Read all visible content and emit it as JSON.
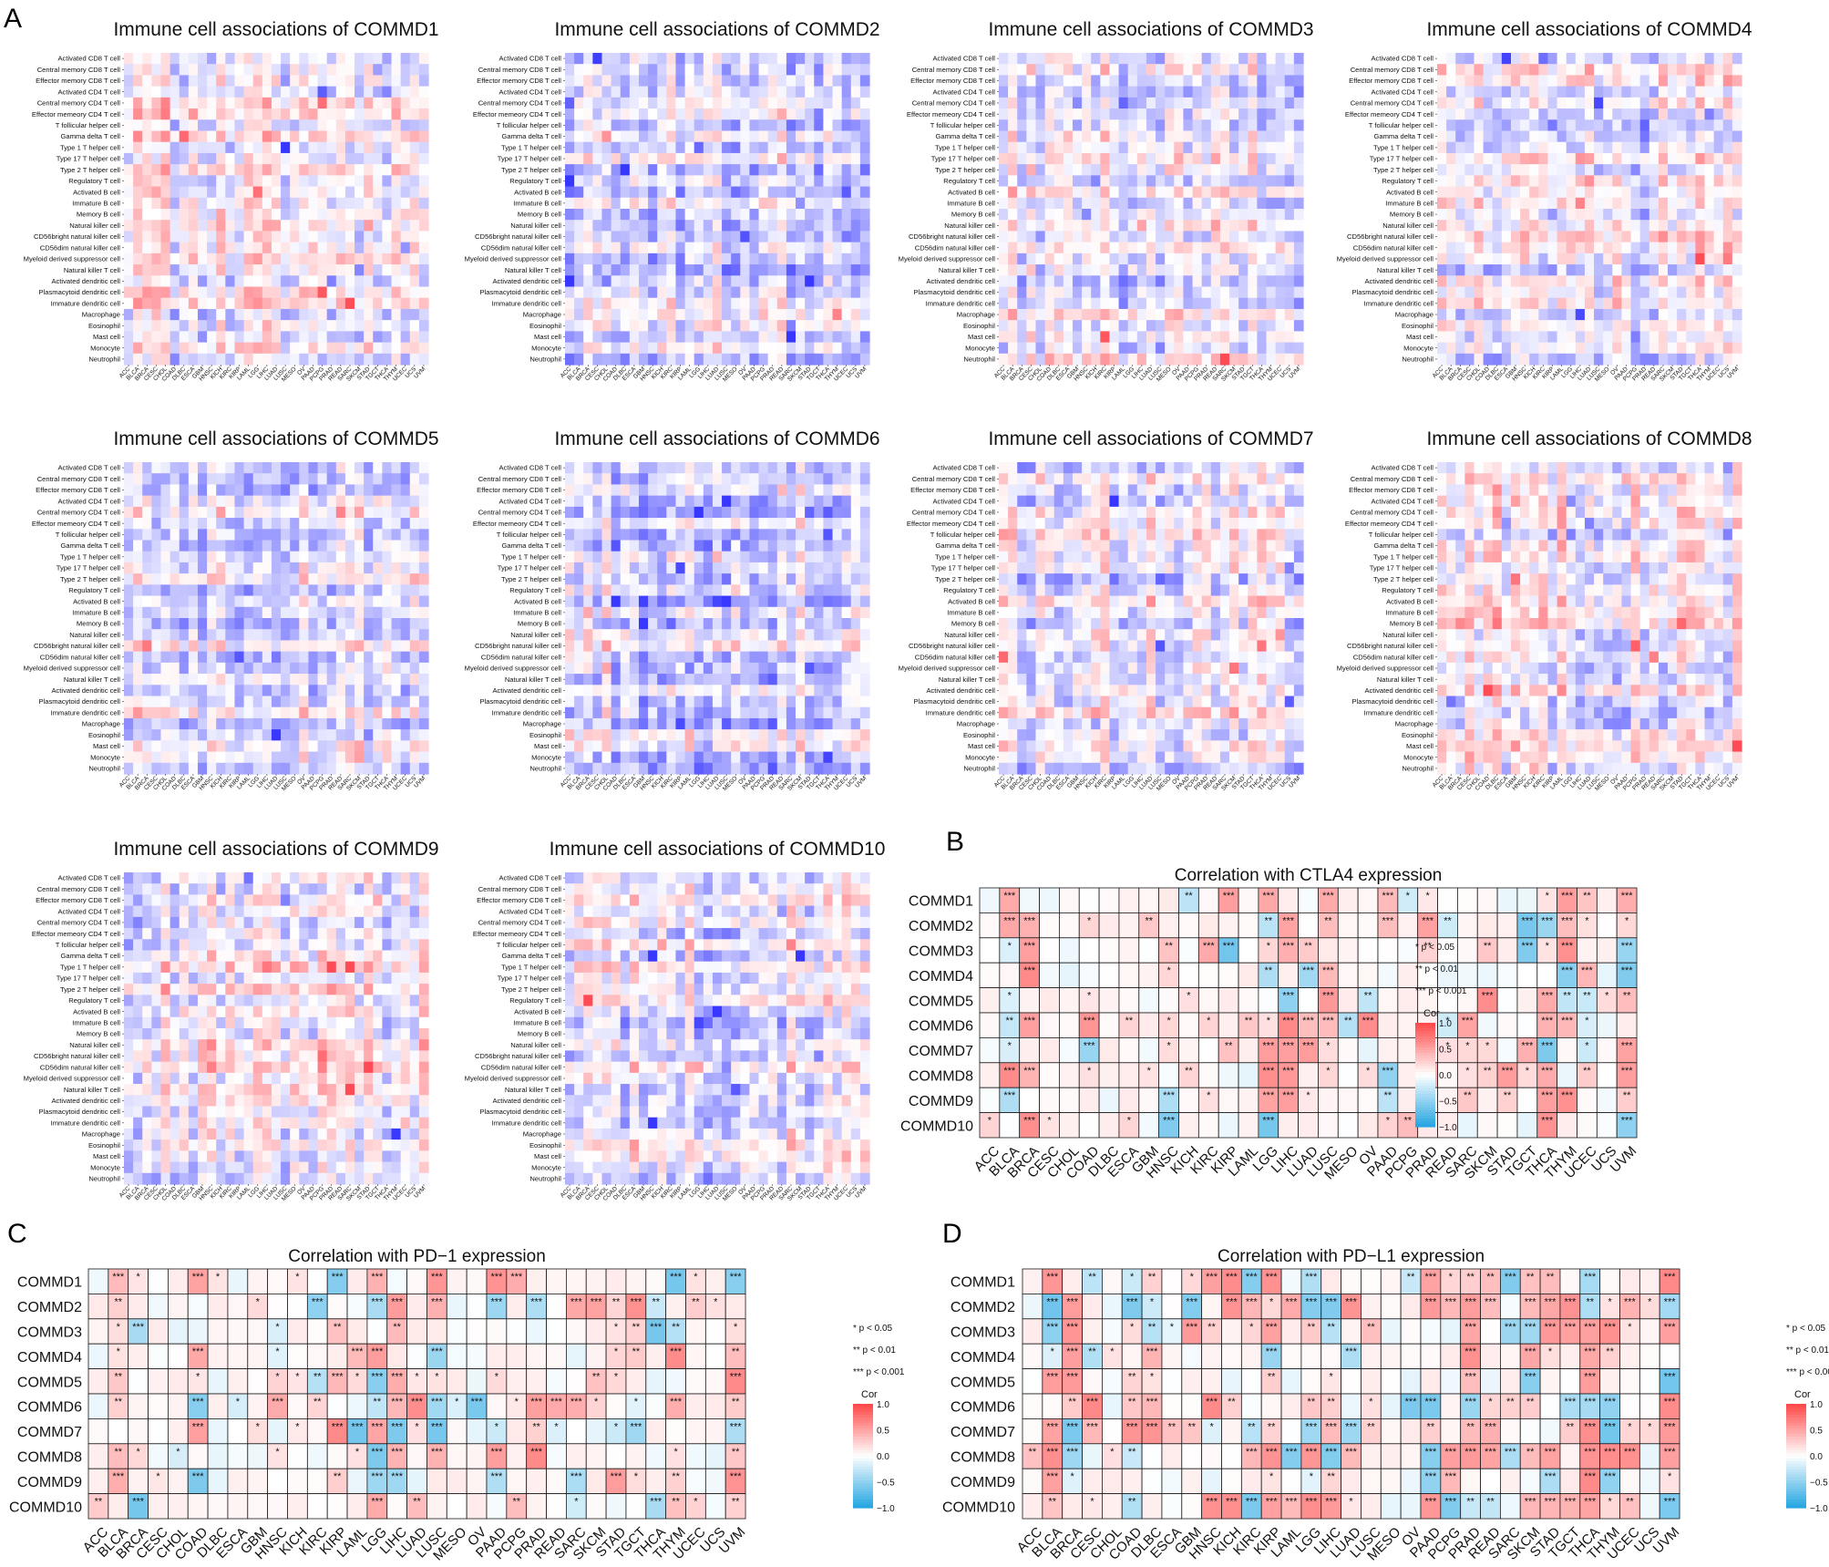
{
  "panel_letters": [
    "A",
    "B",
    "C",
    "D"
  ],
  "immune_cells": [
    "Activated CD8 T cell",
    "Central memory CD8 T cell",
    "Effector memory CD8 T cell",
    "Activated CD4 T cell",
    "Central memory CD4 T cell",
    "Effector memeory CD4 T cell",
    "T follicular helper cell",
    "Gamma delta T cell",
    "Type 1 T helper cell",
    "Type 17 T helper cell",
    "Type 2 T helper cell",
    "Regulatory T cell",
    "Activated B cell",
    "Immature  B cell",
    "Memory B cell",
    "Natural killer cell",
    "CD56bright natural killer cell",
    "CD56dim natural killer cell",
    "Myeloid derived suppressor cell",
    "Natural killer T cell",
    "Activated dendritic cell",
    "Plasmacytoid dendritic cell",
    "Immature dendritic cell",
    "Macrophage",
    "Eosinophil",
    "Mast cell",
    "Monocyte",
    "Neutrophil"
  ],
  "cancers": [
    "ACC",
    "BLCA",
    "BRCA",
    "CESC",
    "CHOL",
    "COAD",
    "DLBC",
    "ESCA",
    "GBM",
    "HNSC",
    "KICH",
    "KIRC",
    "KIRP",
    "LAML",
    "LGG",
    "LIHC",
    "LUAD",
    "LUSC",
    "MESO",
    "OV",
    "PAAD",
    "PCPG",
    "PRAD",
    "READ",
    "SARC",
    "SKCM",
    "STAD",
    "TGCT",
    "THCA",
    "THYM",
    "UCEC",
    "UCS",
    "UVM"
  ],
  "genes": [
    "COMMD1",
    "COMMD2",
    "COMMD3",
    "COMMD4",
    "COMMD5",
    "COMMD6",
    "COMMD7",
    "COMMD8",
    "COMMD9",
    "COMMD10"
  ],
  "legend": {
    "sig": [
      "* p < 0.05",
      "** p < 0.01",
      "*** p < 0.001"
    ],
    "title": "Cor",
    "ticks": [
      "1.0",
      "0.5",
      "0.0",
      "−0.5",
      "−1.0"
    ]
  },
  "colors": {
    "positive": "#e8464f",
    "negative": "#3b3bf0",
    "legend_positive": "#e24a4a",
    "legend_negative": "#29a8df"
  },
  "chart_data": [
    {
      "type": "heatmap",
      "title": "Immune cell associations of COMMD1",
      "x": "cancers",
      "y": "immune_cells",
      "bias": 0.08,
      "seed": 11
    },
    {
      "type": "heatmap",
      "title": "Immune cell associations of COMMD2",
      "x": "cancers",
      "y": "immune_cells",
      "bias": -0.12,
      "seed": 23
    },
    {
      "type": "heatmap",
      "title": "Immune cell associations of COMMD3",
      "x": "cancers",
      "y": "immune_cells",
      "bias": -0.02,
      "seed": 37
    },
    {
      "type": "heatmap",
      "title": "Immune cell associations of COMMD4",
      "x": "cancers",
      "y": "immune_cells",
      "bias": -0.08,
      "seed": 41
    },
    {
      "type": "heatmap",
      "title": "Immune cell associations of COMMD5",
      "x": "cancers",
      "y": "immune_cells",
      "bias": -0.04,
      "seed": 53
    },
    {
      "type": "heatmap",
      "title": "Immune cell associations of COMMD6",
      "x": "cancers",
      "y": "immune_cells",
      "bias": -0.1,
      "seed": 67
    },
    {
      "type": "heatmap",
      "title": "Immune cell associations of COMMD7",
      "x": "cancers",
      "y": "immune_cells",
      "bias": -0.06,
      "seed": 71
    },
    {
      "type": "heatmap",
      "title": "Immune cell associations of COMMD8",
      "x": "cancers",
      "y": "immune_cells",
      "bias": 0.04,
      "seed": 83
    },
    {
      "type": "heatmap",
      "title": "Immune cell associations of COMMD9",
      "x": "cancers",
      "y": "immune_cells",
      "bias": 0.1,
      "seed": 97
    },
    {
      "type": "heatmap",
      "title": "Immune cell associations of COMMD10",
      "x": "cancers",
      "y": "immune_cells",
      "bias": -0.02,
      "seed": 101
    },
    {
      "type": "heatmap",
      "title": "Correlation with CTLA4 expression",
      "x": "cancers",
      "y": "genes",
      "color_range": [
        -1,
        1
      ],
      "stars": [
        [
          "",
          "***",
          "",
          "",
          "",
          "",
          "",
          "",
          "",
          "",
          "**",
          "",
          "***",
          "",
          "***",
          "",
          "",
          "***",
          "",
          "",
          "***",
          "*",
          "*",
          "",
          "",
          "",
          "",
          "",
          "*",
          "***",
          "**",
          "",
          "***"
        ],
        [
          "",
          "***",
          "***",
          "",
          "",
          "*",
          "",
          "",
          "**",
          "",
          "",
          "",
          "",
          "",
          "**",
          "***",
          "",
          "**",
          "",
          "",
          "***",
          "",
          "***",
          "**",
          "",
          "",
          "",
          "***",
          "***",
          "***",
          "*",
          "",
          "*"
        ],
        [
          "",
          "*",
          "***",
          "",
          "",
          "",
          "",
          "",
          "",
          "**",
          "",
          "***",
          "***",
          "",
          "*",
          "***",
          "**",
          "",
          "",
          "",
          "",
          "",
          "**",
          "",
          "",
          "**",
          "",
          "***",
          "*",
          "***",
          "",
          "",
          "***"
        ],
        [
          "",
          "",
          "***",
          "",
          "",
          "",
          "",
          "",
          "",
          "*",
          "",
          "",
          "",
          "",
          "**",
          "",
          "***",
          "***",
          "",
          "",
          "",
          "",
          "",
          "",
          "",
          "",
          "",
          "",
          "",
          "***",
          "***",
          "",
          "***"
        ],
        [
          "",
          "*",
          "",
          "",
          "",
          "*",
          "",
          "",
          "",
          "",
          "*",
          "",
          "",
          "",
          "",
          "***",
          "",
          "***",
          "",
          "**",
          "",
          "",
          "",
          "",
          "",
          "***",
          "",
          "",
          "***",
          "**",
          "**",
          "*",
          "**"
        ],
        [
          "",
          "**",
          "***",
          "",
          "",
          "***",
          "",
          "**",
          "",
          "*",
          "",
          "*",
          "",
          "**",
          "*",
          "***",
          "***",
          "***",
          "**",
          "***",
          "",
          "",
          "",
          "*",
          "***",
          "",
          "",
          "",
          "***",
          "***",
          "*",
          "",
          ""
        ],
        [
          "",
          "*",
          "",
          "",
          "",
          "***",
          "",
          "",
          "",
          "*",
          "",
          "",
          "**",
          "",
          "***",
          "***",
          "***",
          "*",
          "",
          "",
          "",
          "",
          "",
          "*",
          "*",
          "*",
          "",
          "***",
          "***",
          "",
          "*",
          "",
          "***"
        ],
        [
          "",
          "***",
          "***",
          "",
          "",
          "*",
          "",
          "",
          "*",
          "",
          "**",
          "",
          "",
          "",
          "***",
          "***",
          "",
          "*",
          "",
          "*",
          "***",
          "",
          "***",
          "",
          "*",
          "**",
          "***",
          "*",
          "***",
          "",
          "**",
          "",
          "***"
        ],
        [
          "",
          "***",
          "",
          "",
          "",
          "",
          "",
          "",
          "",
          "***",
          "",
          "*",
          "",
          "",
          "***",
          "***",
          "*",
          "",
          "",
          "",
          "**",
          "",
          "",
          "",
          "**",
          "",
          "**",
          "",
          "***",
          "***",
          "",
          "",
          "**"
        ],
        [
          "*",
          "",
          "***",
          "*",
          "",
          "",
          "",
          "*",
          "",
          "***",
          "",
          "",
          "",
          "",
          "***",
          "",
          "",
          "",
          "",
          "",
          "*",
          "**",
          "",
          "",
          "",
          "",
          "",
          "",
          "***",
          "",
          "",
          "",
          "***"
        ]
      ]
    },
    {
      "type": "heatmap",
      "title": "Correlation with PD−1 expression",
      "x": "cancers",
      "y": "genes",
      "color_range": [
        -1,
        1
      ],
      "stars": [
        [
          "",
          "***",
          "*",
          "",
          "",
          "***",
          "*",
          "",
          "",
          "",
          "*",
          "",
          "***",
          "",
          "***",
          "",
          "",
          "***",
          "",
          "",
          "***",
          "***",
          "",
          "",
          "",
          "",
          "",
          "",
          "",
          "***",
          "*",
          "",
          "***"
        ],
        [
          "",
          "**",
          "",
          "",
          "",
          "",
          "",
          "",
          "*",
          "",
          "",
          "***",
          "",
          "",
          "***",
          "***",
          "",
          "***",
          "",
          "",
          "***",
          "",
          "***",
          "",
          "***",
          "***",
          "**",
          "***",
          "**",
          "",
          "**",
          "*",
          ""
        ],
        [
          "",
          "*",
          "***",
          "",
          "",
          "",
          "",
          "",
          "",
          "*",
          "",
          "",
          "**",
          "",
          "",
          "**",
          "",
          "",
          "",
          "",
          "",
          "",
          "",
          "",
          "",
          "",
          "*",
          "**",
          "***",
          "**",
          "",
          "",
          "*"
        ],
        [
          "",
          "*",
          "",
          "",
          "",
          "***",
          "",
          "",
          "",
          "*",
          "",
          "",
          "",
          "***",
          "***",
          "",
          "",
          "***",
          "",
          "",
          "",
          "",
          "",
          "",
          "",
          "",
          "*",
          "**",
          "",
          "***",
          "",
          "",
          "**"
        ],
        [
          "",
          "**",
          "",
          "",
          "",
          "*",
          "",
          "",
          "",
          "*",
          "*",
          "**",
          "***",
          "*",
          "***",
          "***",
          "*",
          "*",
          "",
          "",
          "*",
          "",
          "",
          "",
          "",
          "**",
          "*",
          "",
          "",
          "",
          "",
          "",
          "***"
        ],
        [
          "",
          "**",
          "",
          "",
          "",
          "***",
          "",
          "*",
          "",
          "***",
          "",
          "**",
          "",
          "",
          "**",
          "***",
          "***",
          "***",
          "*",
          "***",
          "",
          "*",
          "***",
          "***",
          "***",
          "*",
          "",
          "*",
          "",
          "***",
          "",
          "",
          "**"
        ],
        [
          "",
          "",
          "",
          "",
          "",
          "***",
          "",
          "",
          "*",
          "",
          "*",
          "",
          "***",
          "***",
          "***",
          "***",
          "*",
          "***",
          "",
          "",
          "*",
          "",
          "**",
          "*",
          "",
          "",
          "*",
          "***",
          "",
          "",
          "",
          "",
          "***"
        ],
        [
          "",
          "**",
          "*",
          "",
          "*",
          "",
          "",
          "",
          "",
          "*",
          "",
          "",
          "",
          "*",
          "***",
          "***",
          "",
          "***",
          "",
          "",
          "***",
          "",
          "***",
          "",
          "",
          "",
          "",
          "",
          "",
          "*",
          "",
          "",
          "**"
        ],
        [
          "",
          "***",
          "",
          "*",
          "",
          "***",
          "",
          "",
          "",
          "",
          "",
          "",
          "**",
          "",
          "***",
          "***",
          "",
          "",
          "",
          "",
          "***",
          "",
          "",
          "",
          "***",
          "",
          "***",
          "*",
          "",
          "**",
          "",
          "",
          "***"
        ],
        [
          "**",
          "",
          "***",
          "",
          "",
          "",
          "",
          "",
          "",
          "",
          "",
          "",
          "",
          "",
          "***",
          "",
          "**",
          "",
          "",
          "",
          "",
          "**",
          "",
          "",
          "*",
          "",
          "",
          "",
          "***",
          "**",
          "*",
          "",
          "**"
        ]
      ]
    },
    {
      "type": "heatmap",
      "title": "Correlation with PD−L1 expression",
      "x": "cancers",
      "y": "genes",
      "color_range": [
        -1,
        1
      ],
      "stars": [
        [
          "",
          "***",
          "",
          "**",
          "",
          "*",
          "**",
          "",
          "*",
          "***",
          "***",
          "***",
          "***",
          "",
          "***",
          "",
          "",
          "",
          "",
          "**",
          "***",
          "*",
          "**",
          "**",
          "***",
          "**",
          "**",
          "",
          "***",
          "",
          "",
          "",
          "***"
        ],
        [
          "",
          "***",
          "***",
          "",
          "",
          "***",
          "*",
          "",
          "***",
          "",
          "***",
          "***",
          "*",
          "***",
          "***",
          "***",
          "***",
          "",
          "",
          "",
          "***",
          "***",
          "***",
          "***",
          "",
          "***",
          "***",
          "***",
          "**",
          "*",
          "***",
          "*",
          "***"
        ],
        [
          "",
          "***",
          "***",
          "",
          "",
          "*",
          "**",
          "*",
          "***",
          "**",
          "",
          "*",
          "***",
          "",
          "**",
          "**",
          "",
          "**",
          "",
          "",
          "",
          "",
          "***",
          "",
          "***",
          "***",
          "***",
          "***",
          "***",
          "***",
          "*",
          "",
          "***"
        ],
        [
          "",
          "*",
          "***",
          "**",
          "*",
          "",
          "***",
          "",
          "",
          "",
          "",
          "",
          "***",
          "",
          "",
          "",
          "***",
          "",
          "",
          "",
          "",
          "",
          "***",
          "",
          "",
          "***",
          "*",
          "",
          "***",
          "**",
          "",
          "",
          ""
        ],
        [
          "",
          "***",
          "***",
          "",
          "",
          "**",
          "*",
          "",
          "",
          "",
          "",
          "",
          "**",
          "",
          "",
          "*",
          "",
          "",
          "",
          "",
          "",
          "",
          "***",
          "",
          "",
          "***",
          "",
          "",
          "***",
          "",
          "",
          "",
          "***"
        ],
        [
          "",
          "",
          "**",
          "***",
          "",
          "**",
          "***",
          "",
          "",
          "***",
          "**",
          "",
          "",
          "",
          "**",
          "**",
          "",
          "*",
          "",
          "***",
          "***",
          "",
          "***",
          "*",
          "**",
          "**",
          "",
          "***",
          "***",
          "***",
          "",
          "",
          "***"
        ],
        [
          "",
          "***",
          "***",
          "***",
          "",
          "***",
          "***",
          "**",
          "**",
          "*",
          "",
          "**",
          "**",
          "",
          "***",
          "***",
          "***",
          "**",
          "",
          "",
          "**",
          "",
          "**",
          "***",
          "",
          "",
          "",
          "**",
          "***",
          "***",
          "*",
          "*",
          "***"
        ],
        [
          "**",
          "***",
          "***",
          "",
          "*",
          "**",
          "",
          "",
          "",
          "",
          "",
          "***",
          "***",
          "***",
          "***",
          "***",
          "***",
          "",
          "",
          "",
          "***",
          "***",
          "***",
          "***",
          "***",
          "**",
          "***",
          "",
          "***",
          "***",
          "***",
          "",
          "***"
        ],
        [
          "",
          "***",
          "*",
          "",
          "",
          "",
          "",
          "",
          "",
          "",
          "",
          "",
          "*",
          "",
          "*",
          "**",
          "",
          "",
          "",
          "",
          "***",
          "***",
          "",
          "",
          "",
          "",
          "***",
          "",
          "***",
          "***",
          "",
          "",
          "*"
        ],
        [
          "",
          "**",
          "",
          "*",
          "",
          "**",
          "",
          "",
          "",
          "***",
          "***",
          "***",
          "***",
          "***",
          "***",
          "***",
          "*",
          "",
          "",
          "",
          "***",
          "***",
          "**",
          "**",
          "",
          "***",
          "***",
          "***",
          "***",
          "*",
          "**",
          "",
          "***"
        ]
      ]
    }
  ]
}
